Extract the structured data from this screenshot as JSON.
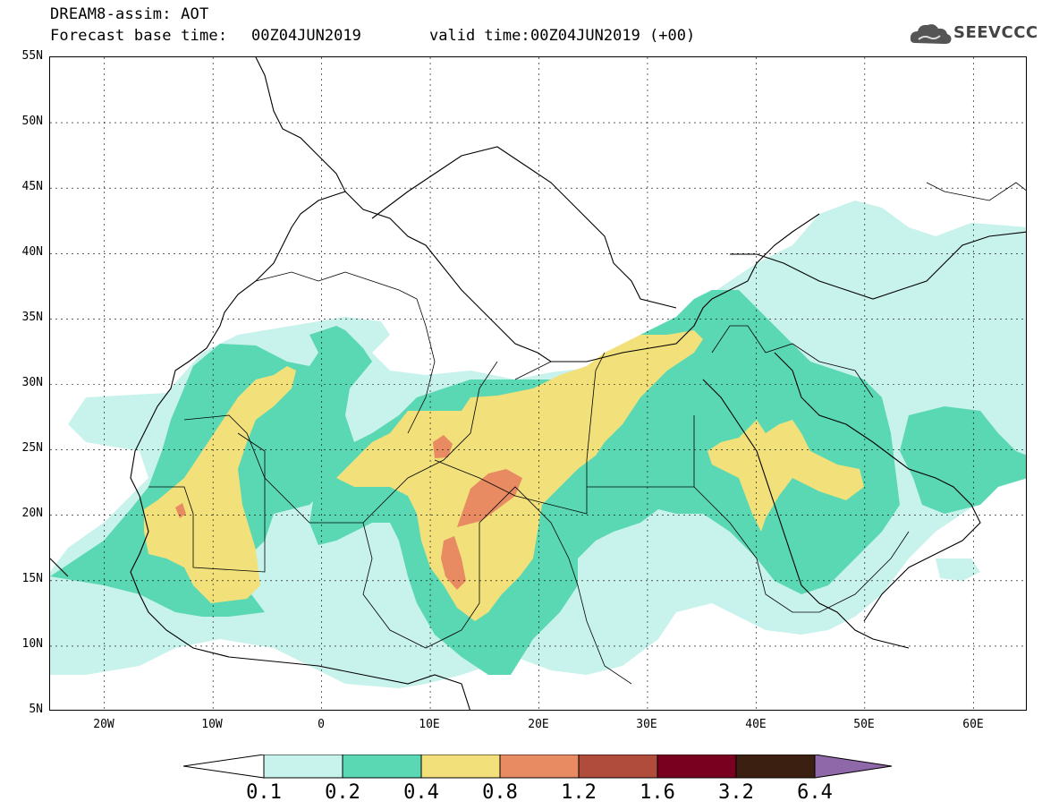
{
  "header": {
    "title_line1": "DREAM8-assim: AOT",
    "base_time_label": "Forecast base time:",
    "base_time_value": "00Z04JUN2019",
    "valid_time_label": "valid time:",
    "valid_time_value": "00Z04JUN2019 (+00)"
  },
  "logo": {
    "text": "SEEVCCC",
    "icon": "cloud-logo-icon"
  },
  "map": {
    "projection": "lat-lon",
    "lat_range": [
      5,
      55
    ],
    "lon_range": [
      -25,
      65
    ],
    "lat_ticks": [
      "5N",
      "10N",
      "15N",
      "20N",
      "25N",
      "30N",
      "35N",
      "40N",
      "45N",
      "50N",
      "55N"
    ],
    "lon_ticks": [
      "20W",
      "10W",
      "0",
      "10E",
      "20E",
      "30E",
      "40E",
      "50E",
      "60E"
    ],
    "variable": "AOT",
    "colors": {
      "c01": "#c8f2ec",
      "c02": "#5ad8b3",
      "c04": "#f2e07a",
      "c08": "#e88b63",
      "c12": "#b04c3c",
      "c16": "#7a0020",
      "c32": "#3b1f10",
      "c64": "#8e68a8"
    }
  },
  "colorbar": {
    "labels": [
      "0.1",
      "0.2",
      "0.4",
      "0.8",
      "1.2",
      "1.6",
      "3.2",
      "6.4"
    ],
    "colors": [
      "#c8f2ec",
      "#5ad8b3",
      "#f2e07a",
      "#e88b63",
      "#b04c3c",
      "#7a0020",
      "#3b1f10"
    ],
    "over_color": "#8e68a8",
    "under_color": "#ffffff"
  }
}
